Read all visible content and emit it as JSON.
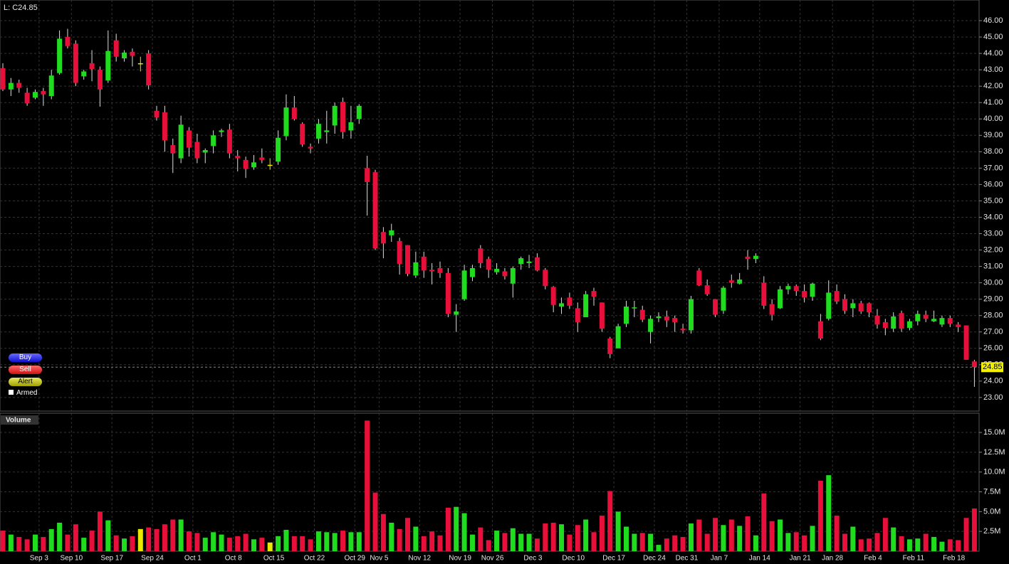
{
  "controls": {
    "buy": "Buy",
    "sell": "Sell",
    "alert": "Alert",
    "armed": "Armed"
  },
  "chart_data": [
    {
      "type": "candlestick",
      "legend_text": "L: C24.85",
      "last_value": 24.85,
      "up_color": "#1fdc1f",
      "down_color": "#e8103a",
      "flat_color": "#e8e800",
      "grid": true,
      "ylim": [
        22.17,
        47.26
      ],
      "yticks": [
        {
          "value": 23,
          "label": "23.00"
        },
        {
          "value": 24,
          "label": "24.00"
        },
        {
          "value": 25,
          "label": "25.00"
        },
        {
          "value": 26,
          "label": "26.00"
        },
        {
          "value": 27,
          "label": "27.00"
        },
        {
          "value": 28,
          "label": "28.00"
        },
        {
          "value": 29,
          "label": "29.00"
        },
        {
          "value": 30,
          "label": "30.00"
        },
        {
          "value": 31,
          "label": "31.00"
        },
        {
          "value": 32,
          "label": "32.00"
        },
        {
          "value": 33,
          "label": "33.00"
        },
        {
          "value": 34,
          "label": "34.00"
        },
        {
          "value": 35,
          "label": "35.00"
        },
        {
          "value": 36,
          "label": "36.00"
        },
        {
          "value": 37,
          "label": "37.00"
        },
        {
          "value": 38,
          "label": "38.00"
        },
        {
          "value": 39,
          "label": "39.00"
        },
        {
          "value": 40,
          "label": "40.00"
        },
        {
          "value": 41,
          "label": "41.00"
        },
        {
          "value": 42,
          "label": "42.00"
        },
        {
          "value": 43,
          "label": "43.00"
        },
        {
          "value": 44,
          "label": "44.00"
        },
        {
          "value": 45,
          "label": "45.00"
        },
        {
          "value": 46,
          "label": "46.00"
        }
      ],
      "open": [
        43.1,
        41.8,
        42.2,
        41.6,
        41.3,
        41.7,
        41.4,
        42.8,
        45.0,
        44.6,
        42.6,
        43.4,
        43.0,
        42.35,
        44.8,
        43.7,
        44.1,
        43.4,
        44.0,
        40.5,
        40.4,
        38.4,
        37.6,
        39.3,
        38.6,
        37.95,
        38.35,
        39.2,
        39.35,
        37.75,
        37.5,
        37.05,
        37.65,
        37.2,
        37.4,
        38.95,
        40.7,
        39.7,
        38.3,
        38.8,
        39.2,
        39.6,
        41.05,
        39.3,
        40.0,
        37.0,
        36.75,
        33.1,
        32.9,
        32.55,
        32.3,
        30.45,
        31.6,
        30.8,
        30.9,
        30.6,
        28.05,
        29.0,
        30.35,
        32.1,
        31.45,
        30.65,
        30.7,
        29.95,
        31.15,
        31.2,
        31.55,
        30.8,
        29.75,
        28.55,
        29.1,
        28.45,
        27.9,
        29.5,
        28.8,
        26.6,
        26.0,
        27.5,
        28.45,
        28.35,
        27.0,
        27.85,
        27.95,
        27.85,
        27.2,
        27.1,
        30.75,
        29.85,
        29.0,
        28.3,
        30.15,
        29.95,
        31.6,
        31.45,
        30.0,
        28.7,
        28.45,
        29.6,
        29.8,
        29.5,
        29.15,
        27.65,
        27.8,
        29.5,
        29.0,
        28.45,
        28.75,
        28.75,
        28.0,
        27.6,
        27.2,
        28.15,
        27.25,
        27.65,
        28.05,
        27.65,
        27.45,
        27.85,
        27.45,
        27.4,
        25.2
      ],
      "high": [
        43.4,
        42.5,
        42.4,
        41.9,
        41.8,
        41.9,
        43.0,
        45.4,
        45.5,
        44.8,
        43.0,
        44.2,
        43.2,
        45.4,
        45.2,
        44.2,
        44.3,
        43.8,
        44.2,
        40.8,
        40.8,
        38.8,
        40.2,
        39.5,
        39.1,
        38.2,
        39.3,
        39.4,
        39.7,
        38.1,
        37.7,
        37.8,
        38.2,
        37.6,
        39.3,
        41.5,
        41.4,
        39.8,
        38.5,
        40.0,
        40.5,
        41.0,
        41.3,
        40.8,
        40.9,
        37.75,
        36.9,
        33.4,
        33.6,
        32.75,
        32.3,
        31.9,
        31.9,
        31.2,
        31.3,
        30.9,
        28.7,
        31.1,
        31.1,
        32.3,
        31.6,
        31.2,
        30.9,
        31.0,
        31.6,
        31.7,
        31.8,
        30.9,
        29.8,
        29.1,
        29.4,
        28.8,
        29.5,
        29.7,
        28.8,
        26.7,
        27.5,
        28.9,
        28.9,
        28.6,
        28.0,
        28.2,
        28.3,
        28.0,
        27.5,
        29.2,
        30.9,
        30.2,
        29.0,
        29.8,
        30.5,
        30.6,
        32.0,
        31.8,
        30.4,
        29.0,
        29.8,
        29.95,
        29.9,
        29.9,
        30.0,
        28.1,
        30.15,
        29.9,
        29.3,
        29.0,
        28.9,
        28.8,
        28.4,
        27.8,
        28.2,
        28.3,
        27.8,
        28.3,
        28.3,
        28.3,
        28.0,
        28.0,
        27.6,
        27.4,
        25.3
      ],
      "low": [
        41.7,
        41.4,
        41.6,
        40.8,
        41.2,
        40.8,
        41.2,
        42.7,
        44.3,
        42.0,
        42.4,
        42.3,
        40.75,
        42.2,
        43.5,
        43.5,
        43.2,
        42.9,
        41.8,
        39.9,
        38.0,
        36.7,
        37.3,
        37.7,
        37.3,
        37.3,
        37.9,
        38.9,
        37.6,
        36.8,
        36.4,
        36.9,
        37.3,
        36.9,
        37.2,
        38.7,
        39.9,
        38.3,
        37.9,
        38.5,
        38.5,
        39.1,
        38.8,
        38.8,
        39.7,
        34.1,
        32.0,
        31.5,
        32.5,
        30.5,
        30.4,
        30.3,
        30.3,
        29.9,
        30.3,
        27.9,
        27.0,
        28.9,
        30.1,
        30.9,
        30.3,
        30.5,
        30.2,
        29.1,
        30.8,
        30.9,
        30.7,
        29.6,
        28.2,
        28.1,
        28.4,
        27.0,
        27.9,
        28.6,
        27.0,
        25.4,
        26.0,
        27.3,
        27.9,
        27.6,
        26.3,
        27.6,
        27.3,
        27.0,
        26.9,
        26.9,
        29.8,
        29.2,
        27.9,
        28.1,
        29.7,
        29.9,
        30.8,
        31.2,
        28.4,
        27.7,
        28.4,
        29.3,
        29.2,
        28.8,
        28.9,
        26.5,
        27.7,
        28.7,
        28.1,
        27.9,
        28.1,
        27.9,
        27.2,
        26.8,
        27.0,
        27.0,
        27.1,
        27.4,
        27.6,
        27.6,
        27.3,
        27.3,
        27.0,
        25.3,
        23.65
      ],
      "close": [
        41.8,
        42.2,
        41.9,
        40.95,
        41.65,
        41.5,
        42.65,
        44.9,
        44.45,
        42.2,
        42.9,
        43.05,
        41.8,
        44.15,
        43.8,
        44.05,
        43.85,
        43.4,
        42.05,
        40.1,
        38.7,
        37.9,
        39.65,
        38.25,
        37.6,
        38.1,
        39.0,
        39.3,
        37.9,
        37.6,
        36.95,
        37.35,
        37.5,
        37.2,
        38.85,
        40.7,
        40.0,
        38.45,
        38.2,
        39.7,
        39.3,
        40.8,
        39.2,
        39.8,
        40.8,
        36.15,
        32.1,
        32.4,
        33.2,
        31.15,
        30.55,
        31.25,
        30.75,
        30.7,
        30.6,
        28.1,
        28.25,
        30.75,
        30.9,
        31.2,
        30.8,
        30.85,
        30.4,
        30.9,
        31.5,
        31.3,
        30.75,
        29.8,
        28.65,
        28.75,
        28.6,
        27.6,
        29.3,
        29.15,
        27.2,
        25.65,
        27.35,
        28.55,
        28.5,
        27.75,
        27.8,
        27.95,
        27.7,
        27.6,
        27.1,
        29.0,
        29.85,
        29.3,
        28.05,
        29.7,
        30.0,
        30.2,
        31.45,
        31.65,
        28.6,
        28.05,
        29.6,
        29.8,
        29.5,
        29.1,
        29.95,
        26.6,
        29.4,
        28.85,
        28.3,
        28.75,
        28.25,
        28.2,
        27.45,
        27.25,
        27.95,
        27.2,
        27.65,
        28.1,
        27.8,
        27.8,
        27.85,
        27.5,
        27.3,
        25.3,
        24.85
      ]
    },
    {
      "type": "bar",
      "title": "Volume",
      "grid": true,
      "ylim": [
        0,
        17340000
      ],
      "yticks": [
        {
          "value": 2500000,
          "label": "2.5M"
        },
        {
          "value": 5000000,
          "label": "5.0M"
        },
        {
          "value": 7500000,
          "label": "7.5M"
        },
        {
          "value": 10000000,
          "label": "10.0M"
        },
        {
          "value": 12500000,
          "label": "12.5M"
        },
        {
          "value": 15000000,
          "label": "15.0M"
        }
      ],
      "categories": [
        null,
        null,
        null,
        null,
        null,
        "Sep 3",
        null,
        null,
        null,
        "Sep 10",
        null,
        null,
        null,
        null,
        "Sep 17",
        null,
        null,
        null,
        null,
        "Sep 24",
        null,
        null,
        null,
        null,
        "Oct 1",
        null,
        null,
        null,
        null,
        "Oct 8",
        null,
        null,
        null,
        null,
        "Oct 15",
        null,
        null,
        null,
        null,
        "Oct 22",
        null,
        null,
        null,
        null,
        "Oct 29",
        null,
        null,
        "Nov 5",
        null,
        null,
        null,
        null,
        "Nov 12",
        null,
        null,
        null,
        null,
        "Nov 19",
        null,
        null,
        null,
        "Nov 26",
        null,
        null,
        null,
        null,
        "Dec 3",
        null,
        null,
        null,
        null,
        "Dec 10",
        null,
        null,
        null,
        null,
        "Dec 17",
        null,
        null,
        null,
        null,
        "Dec 24",
        null,
        null,
        null,
        "Dec 31",
        null,
        null,
        null,
        "Jan 7",
        null,
        null,
        null,
        null,
        "Jan 14",
        null,
        null,
        null,
        null,
        "Jan 21",
        null,
        null,
        null,
        "Jan 28",
        null,
        null,
        null,
        null,
        "Feb 4",
        null,
        null,
        null,
        null,
        "Feb 11",
        null,
        null,
        null,
        null,
        "Feb 18",
        null,
        null
      ],
      "values": [
        2600000,
        2100000,
        1800000,
        1500000,
        2100000,
        1800000,
        2800000,
        3600000,
        2100000,
        3400000,
        1700000,
        2600000,
        5000000,
        3900000,
        2000000,
        1600000,
        1900000,
        2800000,
        3000000,
        2800000,
        3400000,
        4000000,
        4000000,
        2500000,
        2300000,
        1700000,
        2400000,
        2100000,
        1700000,
        1900000,
        2200000,
        1500000,
        1700000,
        1100000,
        1900000,
        2700000,
        1900000,
        1900000,
        1500000,
        2500000,
        2400000,
        2300000,
        2600000,
        2400000,
        2400000,
        16500000,
        7400000,
        4700000,
        3600000,
        2800000,
        4200000,
        3100000,
        1900000,
        2500000,
        2000000,
        5500000,
        5600000,
        4800000,
        2100000,
        3000000,
        1400000,
        2600000,
        2300000,
        2900000,
        2200000,
        2200000,
        1600000,
        3500000,
        3600000,
        3400000,
        2100000,
        3300000,
        4000000,
        2400000,
        4500000,
        7600000,
        5000000,
        3100000,
        2200000,
        2300000,
        2200000,
        800000,
        1600000,
        2000000,
        1800000,
        3500000,
        4000000,
        2200000,
        4200000,
        3300000,
        4000000,
        3200000,
        4400000,
        2000000,
        7300000,
        3800000,
        4000000,
        2300000,
        2400000,
        2000000,
        3200000,
        8900000,
        9600000,
        4500000,
        2200000,
        3100000,
        1500000,
        1600000,
        2300000,
        4200000,
        3000000,
        1900000,
        1500000,
        1600000,
        2200000,
        1800000,
        1200000,
        1500000,
        1400000,
        4200000,
        5400000
      ]
    }
  ]
}
